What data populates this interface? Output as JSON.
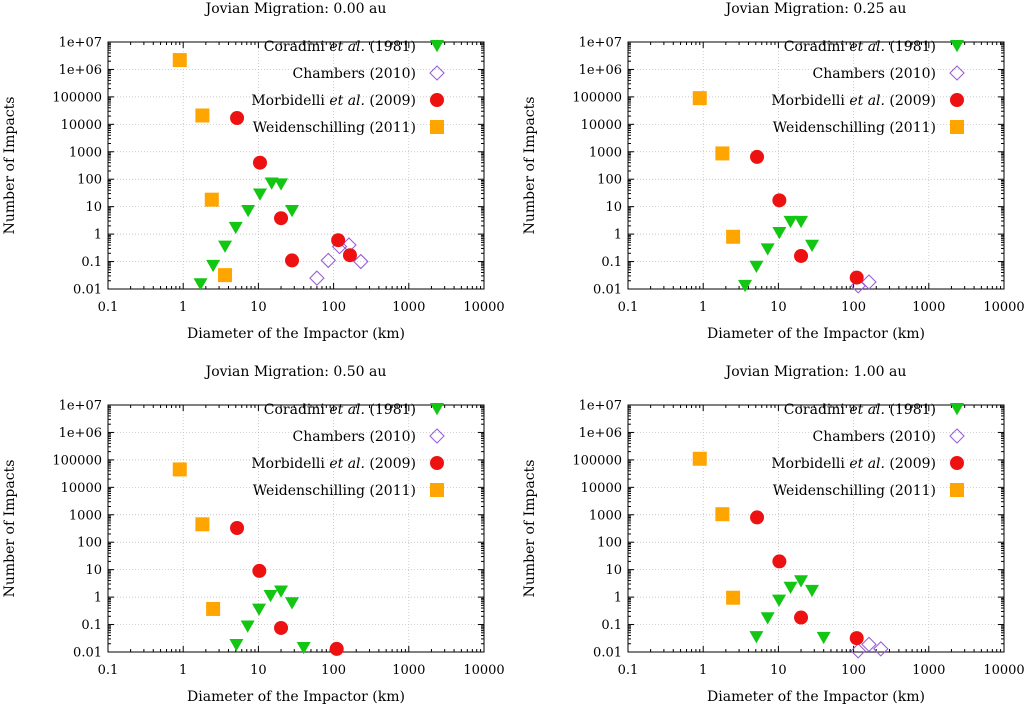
{
  "colors": {
    "coradini": "#13c613",
    "chambers": "#9a60d8",
    "morbidelli": "#ee1111",
    "weidenschilling": "#ffa500"
  },
  "chart_data": [
    {
      "type": "scatter",
      "title": "Jovian Migration: 0.00 au",
      "xlabel": "Diameter of the Impactor (km)",
      "ylabel": "Number of Impacts",
      "xscale": "log",
      "yscale": "log",
      "xlim": [
        0.1,
        10000
      ],
      "ylim": [
        0.01,
        10000000
      ],
      "xticks": [
        "0.1",
        "1",
        "10",
        "100",
        "1000",
        "10000"
      ],
      "yticks": [
        "0.01",
        "0.1",
        "1",
        "10",
        "100",
        "1000",
        "10000",
        "100000",
        "1e+06",
        "1e+07"
      ],
      "legend": "top-right",
      "series": [
        {
          "name": "Coradini et al. (1981)",
          "marker": "triangle-down",
          "points": [
            [
              1.7,
              0.015
            ],
            [
              2.5,
              0.07
            ],
            [
              3.6,
              0.35
            ],
            [
              5.0,
              1.7
            ],
            [
              7.3,
              7
            ],
            [
              10.5,
              28
            ],
            [
              15,
              70
            ],
            [
              20,
              65
            ],
            [
              28,
              7
            ]
          ]
        },
        {
          "name": "Chambers (2010)",
          "marker": "diamond",
          "points": [
            [
              60,
              0.025
            ],
            [
              85,
              0.11
            ],
            [
              120,
              0.35
            ],
            [
              160,
              0.4
            ],
            [
              230,
              0.1
            ]
          ]
        },
        {
          "name": "Morbidelli et al. (2009)",
          "marker": "circle",
          "points": [
            [
              5.2,
              17000
            ],
            [
              10.5,
              400
            ],
            [
              20,
              3.8
            ],
            [
              28,
              0.11
            ],
            [
              115,
              0.6
            ],
            [
              165,
              0.17
            ]
          ]
        },
        {
          "name": "Weidenschilling (2011)",
          "marker": "square",
          "points": [
            [
              0.9,
              2200000
            ],
            [
              1.8,
              21000
            ],
            [
              2.4,
              18
            ],
            [
              3.6,
              0.032
            ]
          ]
        }
      ]
    },
    {
      "type": "scatter",
      "title": "Jovian Migration: 0.25 au",
      "xlabel": "Diameter of the Impactor (km)",
      "ylabel": "Number of Impacts",
      "xscale": "log",
      "yscale": "log",
      "xlim": [
        0.1,
        10000
      ],
      "ylim": [
        0.01,
        10000000
      ],
      "xticks": [
        "0.1",
        "1",
        "10",
        "100",
        "1000",
        "10000"
      ],
      "yticks": [
        "0.01",
        "0.1",
        "1",
        "10",
        "100",
        "1000",
        "10000",
        "100000",
        "1e+06",
        "1e+07"
      ],
      "legend": "top-right",
      "series": [
        {
          "name": "Coradini et al. (1981)",
          "marker": "triangle-down",
          "points": [
            [
              3.6,
              0.013
            ],
            [
              5.1,
              0.065
            ],
            [
              7.2,
              0.28
            ],
            [
              10.3,
              1.1
            ],
            [
              14.5,
              2.8
            ],
            [
              20,
              2.8
            ],
            [
              28,
              0.38
            ]
          ]
        },
        {
          "name": "Chambers (2010)",
          "marker": "diamond",
          "points": [
            [
              115,
              0.013
            ],
            [
              160,
              0.018
            ]
          ]
        },
        {
          "name": "Morbidelli et al. (2009)",
          "marker": "circle",
          "points": [
            [
              5.2,
              650
            ],
            [
              10.3,
              17
            ],
            [
              20,
              0.16
            ],
            [
              110,
              0.026
            ]
          ]
        },
        {
          "name": "Weidenschilling (2011)",
          "marker": "square",
          "points": [
            [
              0.9,
              90000
            ],
            [
              1.8,
              870
            ],
            [
              2.5,
              0.8
            ]
          ]
        }
      ]
    },
    {
      "type": "scatter",
      "title": "Jovian Migration: 0.50 au",
      "xlabel": "Diameter of the Impactor (km)",
      "ylabel": "Number of Impacts",
      "xscale": "log",
      "yscale": "log",
      "xlim": [
        0.1,
        10000
      ],
      "ylim": [
        0.01,
        10000000
      ],
      "xticks": [
        "0.1",
        "1",
        "10",
        "100",
        "1000",
        "10000"
      ],
      "yticks": [
        "0.01",
        "0.1",
        "1",
        "10",
        "100",
        "1000",
        "10000",
        "100000",
        "1e+06",
        "1e+07"
      ],
      "legend": "top-right",
      "series": [
        {
          "name": "Coradini et al. (1981)",
          "marker": "triangle-down",
          "points": [
            [
              5.1,
              0.018
            ],
            [
              7.2,
              0.085
            ],
            [
              10.2,
              0.35
            ],
            [
              14.5,
              1.1
            ],
            [
              20,
              1.6
            ],
            [
              28,
              0.6
            ],
            [
              40,
              0.014
            ]
          ]
        },
        {
          "name": "Chambers (2010)",
          "marker": "diamond",
          "points": []
        },
        {
          "name": "Morbidelli et al. (2009)",
          "marker": "circle",
          "points": [
            [
              5.2,
              330
            ],
            [
              10.3,
              9
            ],
            [
              20,
              0.075
            ],
            [
              110,
              0.013
            ]
          ]
        },
        {
          "name": "Weidenschilling (2011)",
          "marker": "square",
          "points": [
            [
              0.9,
              45000
            ],
            [
              1.8,
              450
            ],
            [
              2.5,
              0.37
            ]
          ]
        }
      ]
    },
    {
      "type": "scatter",
      "title": "Jovian Migration: 1.00 au",
      "xlabel": "Diameter of the Impactor (km)",
      "ylabel": "Number of Impacts",
      "xscale": "log",
      "yscale": "log",
      "xlim": [
        0.1,
        10000
      ],
      "ylim": [
        0.01,
        10000000
      ],
      "xticks": [
        "0.1",
        "1",
        "10",
        "100",
        "1000",
        "10000"
      ],
      "yticks": [
        "0.01",
        "0.1",
        "1",
        "10",
        "100",
        "1000",
        "10000",
        "100000",
        "1e+06",
        "1e+07"
      ],
      "legend": "top-right",
      "series": [
        {
          "name": "Coradini et al. (1981)",
          "marker": "triangle-down",
          "points": [
            [
              5.1,
              0.035
            ],
            [
              7.2,
              0.17
            ],
            [
              10.2,
              0.75
            ],
            [
              14.5,
              2.2
            ],
            [
              20,
              3.8
            ],
            [
              28,
              1.7
            ],
            [
              40,
              0.033
            ]
          ]
        },
        {
          "name": "Chambers (2010)",
          "marker": "diamond",
          "points": [
            [
              115,
              0.011
            ],
            [
              160,
              0.019
            ],
            [
              230,
              0.013
            ]
          ]
        },
        {
          "name": "Morbidelli et al. (2009)",
          "marker": "circle",
          "points": [
            [
              5.2,
              800
            ],
            [
              10.3,
              20
            ],
            [
              20,
              0.18
            ],
            [
              110,
              0.032
            ]
          ]
        },
        {
          "name": "Weidenschilling (2011)",
          "marker": "square",
          "points": [
            [
              0.9,
              110000
            ],
            [
              1.8,
              1050
            ],
            [
              2.5,
              0.95
            ]
          ]
        }
      ]
    }
  ]
}
